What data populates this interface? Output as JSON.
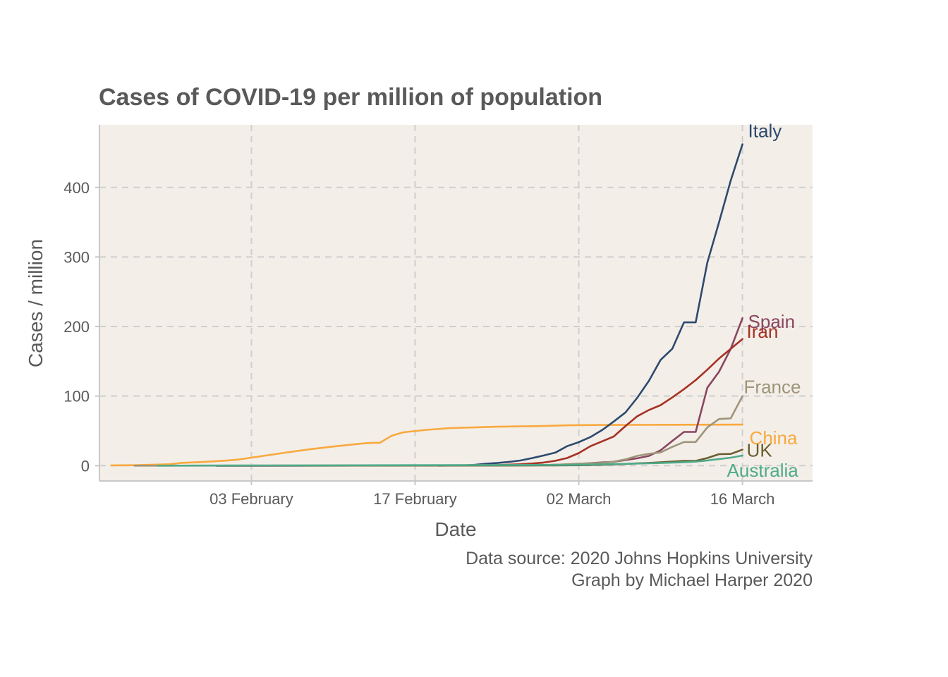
{
  "chart_data": {
    "type": "line",
    "title": "Cases of COVID-19 per million of population",
    "xlabel": "Date",
    "ylabel": "Cases / million",
    "caption_lines": [
      "Data source: 2020 Johns Hopkins University",
      "Graph by Michael Harper 2020"
    ],
    "x_domain": [
      "2020-01-21",
      "2020-03-22"
    ],
    "ylim": [
      -22,
      490
    ],
    "x_ticks": [
      {
        "date": "2020-02-03",
        "label": "03 February"
      },
      {
        "date": "2020-02-17",
        "label": "17 February"
      },
      {
        "date": "2020-03-02",
        "label": "02 March"
      },
      {
        "date": "2020-03-16",
        "label": "16 March"
      }
    ],
    "y_ticks": [
      0,
      100,
      200,
      300,
      400
    ],
    "grid": true,
    "legend": "direct labels at line ends",
    "panel_background": "#f3eee8",
    "series": [
      {
        "name": "China",
        "color": "#f9a93e",
        "points": [
          [
            "2020-01-22",
            0.4
          ],
          [
            "2020-01-24",
            0.6
          ],
          [
            "2020-01-26",
            1.5
          ],
          [
            "2020-01-27",
            2.0
          ],
          [
            "2020-01-28",
            4.0
          ],
          [
            "2020-01-30",
            5.5
          ],
          [
            "2020-02-01",
            7.5
          ],
          [
            "2020-02-02",
            9.0
          ],
          [
            "2020-02-04",
            14.0
          ],
          [
            "2020-02-06",
            19.0
          ],
          [
            "2020-02-08",
            23.5
          ],
          [
            "2020-02-10",
            27.5
          ],
          [
            "2020-02-12",
            31.0
          ],
          [
            "2020-02-13",
            32.5
          ],
          [
            "2020-02-14",
            33.0
          ],
          [
            "2020-02-15",
            43.0
          ],
          [
            "2020-02-16",
            48.0
          ],
          [
            "2020-02-18",
            51.5
          ],
          [
            "2020-02-20",
            54.0
          ],
          [
            "2020-02-22",
            55.0
          ],
          [
            "2020-02-24",
            56.0
          ],
          [
            "2020-02-26",
            56.5
          ],
          [
            "2020-02-28",
            57.0
          ],
          [
            "2020-03-01",
            58.0
          ],
          [
            "2020-03-04",
            58.5
          ],
          [
            "2020-03-10",
            58.8
          ],
          [
            "2020-03-16",
            59.0
          ]
        ]
      },
      {
        "name": "Italy",
        "color": "#2e4a6e",
        "points": [
          [
            "2020-01-31",
            0
          ],
          [
            "2020-02-20",
            0.1
          ],
          [
            "2020-02-21",
            0.3
          ],
          [
            "2020-02-22",
            1.0
          ],
          [
            "2020-02-23",
            2.6
          ],
          [
            "2020-02-24",
            3.8
          ],
          [
            "2020-02-25",
            5.3
          ],
          [
            "2020-02-26",
            7.4
          ],
          [
            "2020-02-27",
            10.8
          ],
          [
            "2020-02-28",
            14.6
          ],
          [
            "2020-02-29",
            18.8
          ],
          [
            "2020-03-01",
            28.0
          ],
          [
            "2020-03-02",
            33.8
          ],
          [
            "2020-03-03",
            41.2
          ],
          [
            "2020-03-04",
            51.2
          ],
          [
            "2020-03-05",
            63.5
          ],
          [
            "2020-03-06",
            76.5
          ],
          [
            "2020-03-07",
            97.5
          ],
          [
            "2020-03-08",
            122.0
          ],
          [
            "2020-03-09",
            152.0
          ],
          [
            "2020-03-10",
            168.0
          ],
          [
            "2020-03-11",
            206.0
          ],
          [
            "2020-03-12",
            206.0
          ],
          [
            "2020-03-13",
            292.0
          ],
          [
            "2020-03-14",
            350.0
          ],
          [
            "2020-03-15",
            410.0
          ],
          [
            "2020-03-16",
            462.0
          ]
        ]
      },
      {
        "name": "Spain",
        "color": "#8a4661",
        "points": [
          [
            "2020-01-31",
            0
          ],
          [
            "2020-02-24",
            0.1
          ],
          [
            "2020-02-26",
            0.3
          ],
          [
            "2020-02-28",
            0.7
          ],
          [
            "2020-03-01",
            1.8
          ],
          [
            "2020-03-02",
            2.6
          ],
          [
            "2020-03-03",
            3.6
          ],
          [
            "2020-03-04",
            4.7
          ],
          [
            "2020-03-05",
            5.5
          ],
          [
            "2020-03-06",
            8.0
          ],
          [
            "2020-03-07",
            10.5
          ],
          [
            "2020-03-08",
            14.0
          ],
          [
            "2020-03-09",
            22.0
          ],
          [
            "2020-03-10",
            35.5
          ],
          [
            "2020-03-11",
            48.5
          ],
          [
            "2020-03-12",
            48.5
          ],
          [
            "2020-03-13",
            112.0
          ],
          [
            "2020-03-14",
            135.0
          ],
          [
            "2020-03-15",
            168.0
          ],
          [
            "2020-03-16",
            212.0
          ]
        ]
      },
      {
        "name": "Iran",
        "color": "#a63124",
        "points": [
          [
            "2020-02-19",
            0
          ],
          [
            "2020-02-22",
            0.3
          ],
          [
            "2020-02-24",
            0.8
          ],
          [
            "2020-02-26",
            2.0
          ],
          [
            "2020-02-27",
            3.0
          ],
          [
            "2020-02-28",
            4.5
          ],
          [
            "2020-02-29",
            7.0
          ],
          [
            "2020-03-01",
            11.0
          ],
          [
            "2020-03-02",
            18.0
          ],
          [
            "2020-03-03",
            28.0
          ],
          [
            "2020-03-04",
            35.0
          ],
          [
            "2020-03-05",
            42.0
          ],
          [
            "2020-03-06",
            57.0
          ],
          [
            "2020-03-07",
            71.0
          ],
          [
            "2020-03-08",
            80.0
          ],
          [
            "2020-03-09",
            87.0
          ],
          [
            "2020-03-10",
            98.0
          ],
          [
            "2020-03-11",
            110.0
          ],
          [
            "2020-03-12",
            123.0
          ],
          [
            "2020-03-13",
            138.0
          ],
          [
            "2020-03-14",
            154.0
          ],
          [
            "2020-03-15",
            168.0
          ],
          [
            "2020-03-16",
            182.0
          ]
        ]
      },
      {
        "name": "France",
        "color": "#9e957a",
        "points": [
          [
            "2020-01-24",
            0
          ],
          [
            "2020-02-25",
            0.2
          ],
          [
            "2020-02-28",
            0.6
          ],
          [
            "2020-03-01",
            2.0
          ],
          [
            "2020-03-02",
            2.9
          ],
          [
            "2020-03-03",
            3.2
          ],
          [
            "2020-03-04",
            4.0
          ],
          [
            "2020-03-05",
            5.7
          ],
          [
            "2020-03-06",
            9.0
          ],
          [
            "2020-03-07",
            14.0
          ],
          [
            "2020-03-08",
            17.0
          ],
          [
            "2020-03-09",
            19.0
          ],
          [
            "2020-03-10",
            27.0
          ],
          [
            "2020-03-11",
            34.0
          ],
          [
            "2020-03-12",
            34.0
          ],
          [
            "2020-03-13",
            55.0
          ],
          [
            "2020-03-14",
            67.0
          ],
          [
            "2020-03-15",
            68.0
          ],
          [
            "2020-03-16",
            100.0
          ]
        ]
      },
      {
        "name": "UK",
        "color": "#6b5d2e",
        "points": [
          [
            "2020-01-31",
            0
          ],
          [
            "2020-02-20",
            0.2
          ],
          [
            "2020-02-26",
            0.3
          ],
          [
            "2020-02-29",
            0.4
          ],
          [
            "2020-03-01",
            0.5
          ],
          [
            "2020-03-02",
            0.6
          ],
          [
            "2020-03-03",
            0.8
          ],
          [
            "2020-03-04",
            1.2
          ],
          [
            "2020-03-05",
            1.7
          ],
          [
            "2020-03-06",
            2.4
          ],
          [
            "2020-03-07",
            3.2
          ],
          [
            "2020-03-08",
            4.0
          ],
          [
            "2020-03-09",
            4.8
          ],
          [
            "2020-03-10",
            5.8
          ],
          [
            "2020-03-11",
            6.9
          ],
          [
            "2020-03-12",
            6.9
          ],
          [
            "2020-03-13",
            11.0
          ],
          [
            "2020-03-14",
            16.5
          ],
          [
            "2020-03-15",
            16.8
          ],
          [
            "2020-03-16",
            23.0
          ]
        ]
      },
      {
        "name": "Australia",
        "color": "#4fab8a",
        "points": [
          [
            "2020-01-26",
            0
          ],
          [
            "2020-02-01",
            0.2
          ],
          [
            "2020-02-15",
            0.6
          ],
          [
            "2020-03-01",
            1.1
          ],
          [
            "2020-03-03",
            1.5
          ],
          [
            "2020-03-05",
            2.2
          ],
          [
            "2020-03-07",
            3.0
          ],
          [
            "2020-03-09",
            3.8
          ],
          [
            "2020-03-11",
            5.0
          ],
          [
            "2020-03-12",
            5.8
          ],
          [
            "2020-03-13",
            7.5
          ],
          [
            "2020-03-14",
            9.5
          ],
          [
            "2020-03-15",
            11.5
          ],
          [
            "2020-03-16",
            14.5
          ]
        ]
      }
    ]
  }
}
